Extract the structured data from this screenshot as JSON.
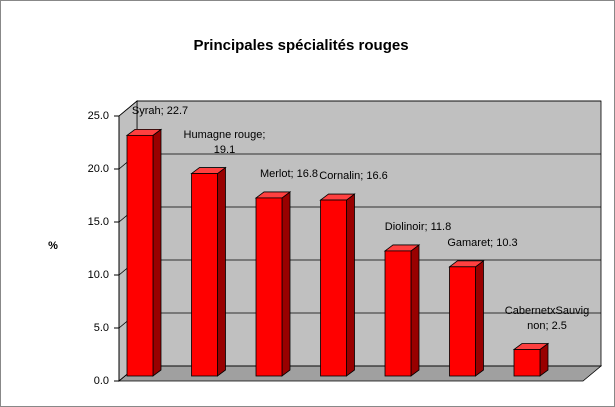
{
  "chart_data": {
    "type": "bar3d",
    "title": "Principales spécialités rouges",
    "y_label": "%",
    "categories": [
      "Syrah",
      "Humagne rouge",
      "Merlot",
      "Cornalin",
      "Diolinoir",
      "Gamaret",
      "CabernetxSauvignon"
    ],
    "values": [
      22.7,
      19.1,
      16.8,
      16.6,
      11.8,
      10.3,
      2.5
    ],
    "value_labels": [
      "Syrah; 22.7",
      "Humagne rouge; 19.1",
      "Merlot; 16.8",
      "Cornalin; 16.6",
      "Diolinoir; 11.8",
      "Gamaret; 10.3",
      "CabernetxSauvignon; 2.5"
    ],
    "color": "#ff0000",
    "ylim": [
      0,
      25
    ],
    "yticks": [
      {
        "value": 0,
        "label": "0.0"
      },
      {
        "value": 5,
        "label": "5.0"
      },
      {
        "value": 10,
        "label": "10.0"
      },
      {
        "value": 15,
        "label": "15.0"
      },
      {
        "value": 20,
        "label": "20.0"
      },
      {
        "value": 25,
        "label": "25.0"
      }
    ],
    "grid": true
  }
}
